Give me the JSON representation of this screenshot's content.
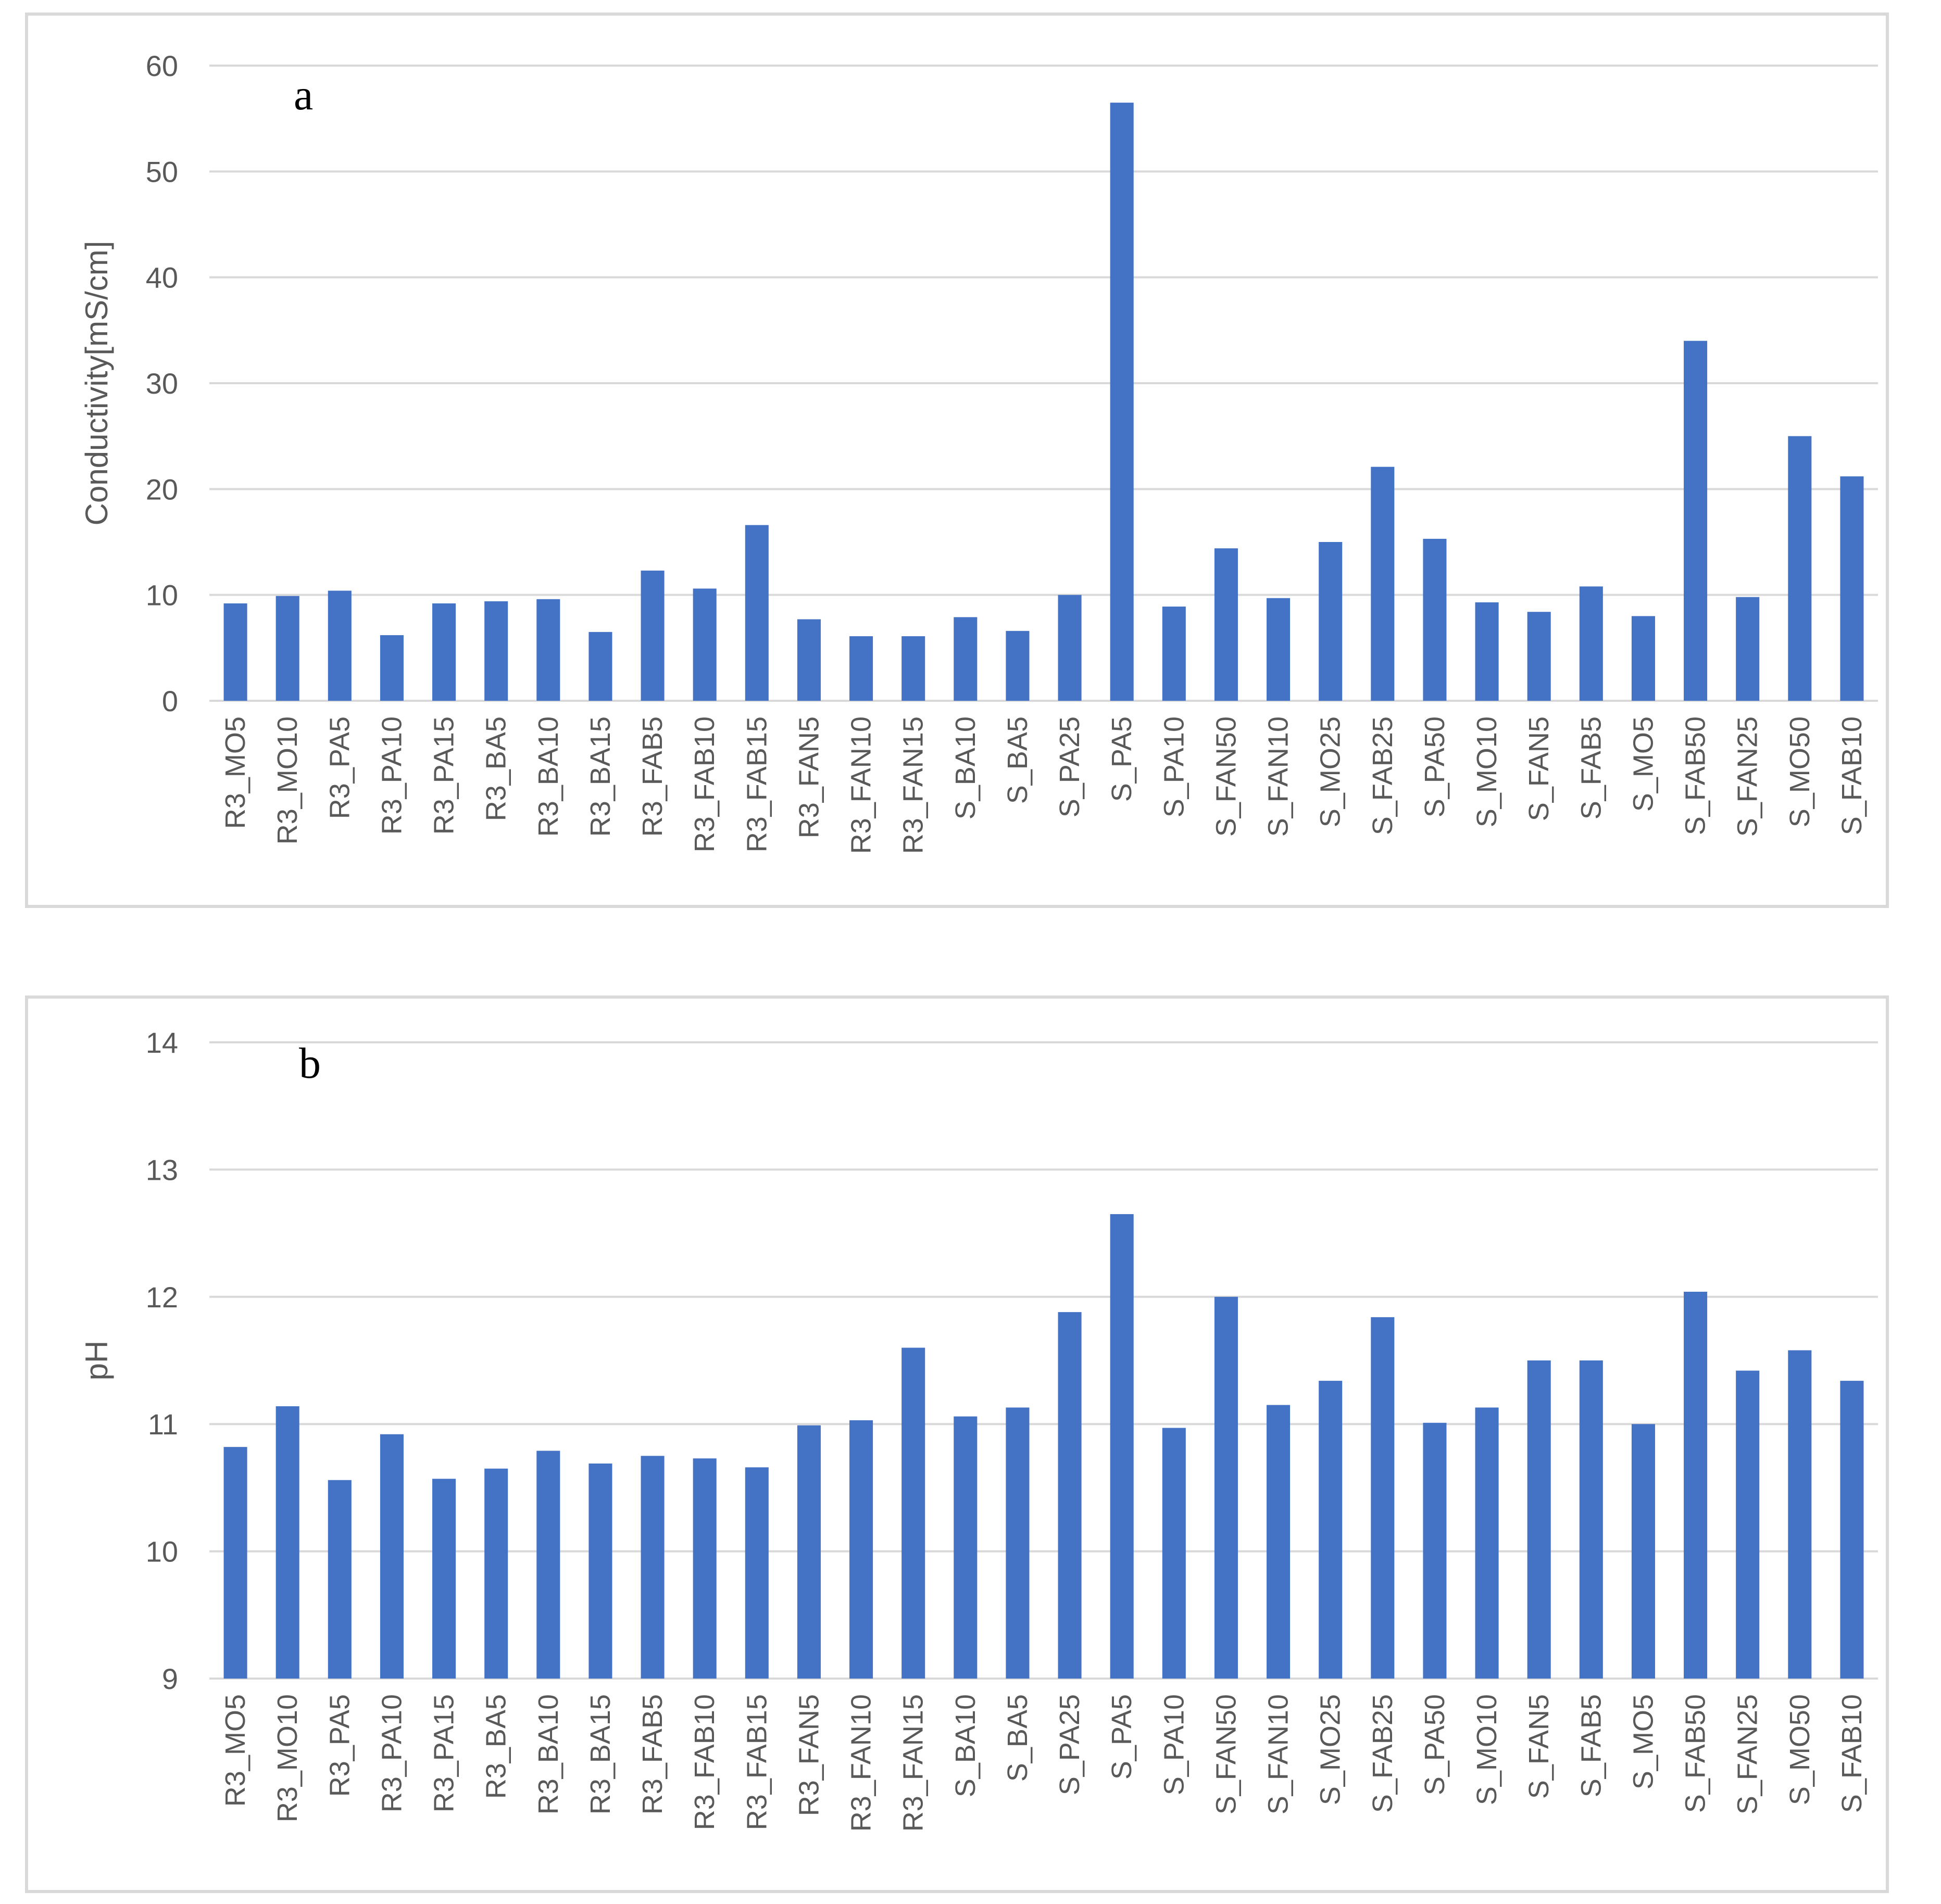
{
  "chart_data": [
    {
      "type": "bar",
      "panel_label": "a",
      "ylabel": "Conductivity[mS/cm]",
      "xlabel": "",
      "ylim": [
        0,
        60
      ],
      "yticks": [
        0,
        10,
        20,
        30,
        40,
        50,
        60
      ],
      "grid": true,
      "bar_color": "#4472c4",
      "categories": [
        "R3_MO5",
        "R3_MO10",
        "R3_PA5",
        "R3_PA10",
        "R3_PA15",
        "R3_BA5",
        "R3_BA10",
        "R3_BA15",
        "R3_FAB5",
        "R3_FAB10",
        "R3_FAB15",
        "R3_FAN5",
        "R3_FAN10",
        "R3_FAN15",
        "S_BA10",
        "S_BA5",
        "S_PA25",
        "S_PA5",
        "S_PA10",
        "S_FAN50",
        "S_FAN10",
        "S_MO25",
        "S_FAB25",
        "S_PA50",
        "S_MO10",
        "S_FAN5",
        "S_FAB5",
        "S_MO5",
        "S_FAB50",
        "S_FAN25",
        "S_MO50",
        "S_FAB10"
      ],
      "values": [
        9.2,
        9.9,
        10.4,
        6.2,
        9.2,
        9.4,
        9.6,
        6.5,
        12.3,
        10.6,
        16.6,
        7.7,
        6.1,
        6.1,
        7.9,
        6.6,
        10.0,
        56.5,
        8.9,
        14.4,
        9.7,
        15.0,
        22.1,
        15.3,
        9.3,
        8.4,
        10.8,
        8.0,
        34.0,
        9.8,
        25.0,
        21.2
      ]
    },
    {
      "type": "bar",
      "panel_label": "b",
      "ylabel": "pH",
      "xlabel": "",
      "ylim": [
        9,
        14
      ],
      "yticks": [
        9,
        10,
        11,
        12,
        13,
        14
      ],
      "grid": true,
      "bar_color": "#4472c4",
      "categories": [
        "R3_MO5",
        "R3_MO10",
        "R3_PA5",
        "R3_PA10",
        "R3_PA15",
        "R3_BA5",
        "R3_BA10",
        "R3_BA15",
        "R3_FAB5",
        "R3_FAB10",
        "R3_FAB15",
        "R3_FAN5",
        "R3_FAN10",
        "R3_FAN15",
        "S_BA10",
        "S_BA5",
        "S_PA25",
        "S_PA5",
        "S_PA10",
        "S_FAN50",
        "S_FAN10",
        "S_MO25",
        "S_FAB25",
        "S_PA50",
        "S_MO10",
        "S_FAN5",
        "S_FAB5",
        "S_MO5",
        "S_FAB50",
        "S_FAN25",
        "S_MO50",
        "S_FAB10"
      ],
      "values": [
        10.82,
        11.14,
        10.56,
        10.92,
        10.57,
        10.65,
        10.79,
        10.69,
        10.75,
        10.73,
        10.66,
        10.99,
        11.03,
        11.6,
        11.06,
        11.13,
        11.88,
        12.65,
        10.97,
        12.0,
        11.15,
        11.34,
        11.84,
        11.01,
        11.13,
        11.5,
        11.5,
        11.0,
        12.04,
        11.42,
        11.58,
        11.34
      ]
    }
  ]
}
